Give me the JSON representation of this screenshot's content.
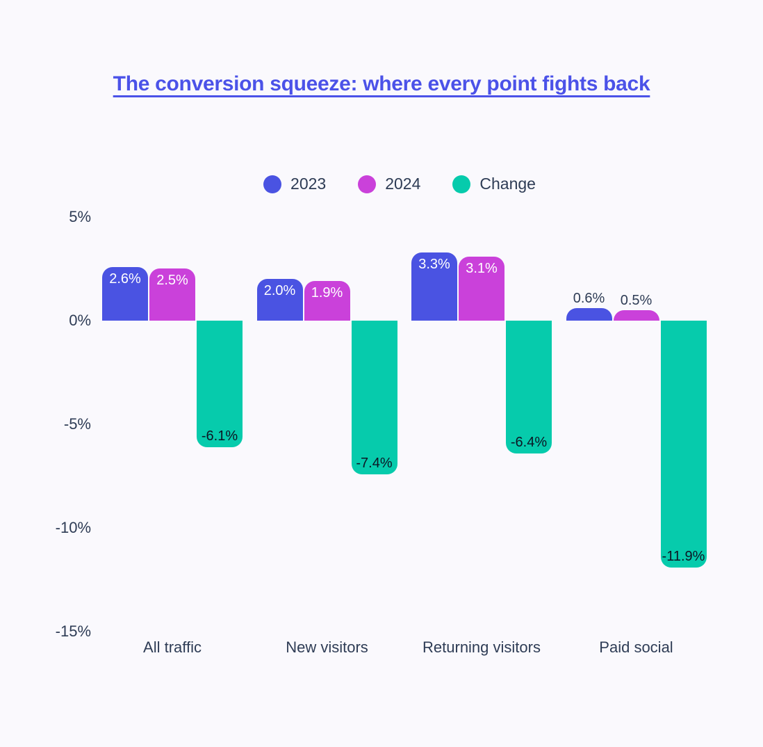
{
  "page": {
    "background": "#faf9fd",
    "text_color": "#2e3c55"
  },
  "title": {
    "text": "The conversion squeeze: where every point fights back",
    "color": "#4b52e8"
  },
  "chart_data": {
    "type": "bar",
    "title": "The conversion squeeze: where every point fights back",
    "categories": [
      "All traffic",
      "New visitors",
      "Returning visitors",
      "Paid social"
    ],
    "series": [
      {
        "name": "2023",
        "color": "#4a53e2",
        "values": [
          2.6,
          2.0,
          3.3,
          0.6
        ],
        "labels": [
          "2.6%",
          "2.0%",
          "3.3%",
          "0.6%"
        ]
      },
      {
        "name": "2024",
        "color": "#ca41da",
        "values": [
          2.5,
          1.9,
          3.1,
          0.5
        ],
        "labels": [
          "2.5%",
          "1.9%",
          "3.1%",
          "0.5%"
        ]
      },
      {
        "name": "Change",
        "color": "#06cbac",
        "values": [
          -6.1,
          -7.4,
          -6.4,
          -11.9
        ],
        "labels": [
          "-6.1%",
          "-7.4%",
          "-6.4%",
          "-11.9%"
        ]
      }
    ],
    "y_ticks": [
      "5%",
      "0%",
      "-5%",
      "-10%",
      "-15%"
    ],
    "y_tick_values": [
      5,
      0,
      -5,
      -10,
      -15
    ],
    "ylabel": "",
    "xlabel": "",
    "ylim": [
      -15,
      5
    ],
    "grid": false,
    "legend_position": "top",
    "bar_label_color_positive": "#ffffff",
    "bar_label_color_negative": "#0c1624"
  }
}
